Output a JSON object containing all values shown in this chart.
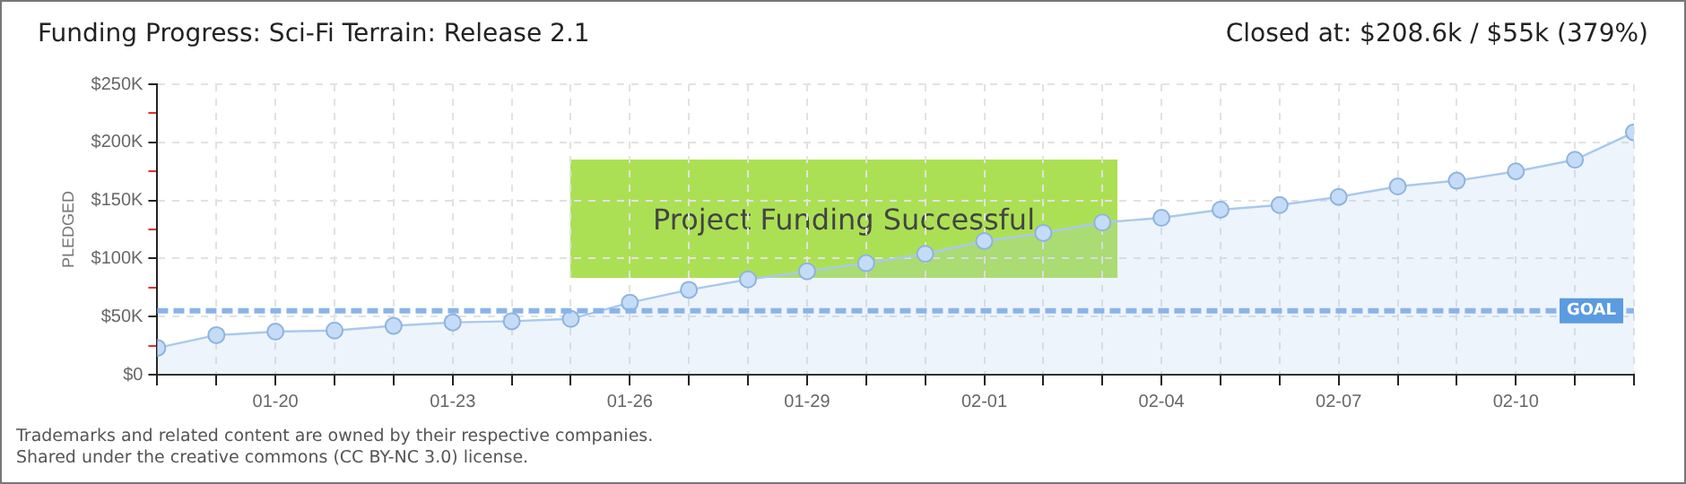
{
  "chart_data": {
    "type": "area",
    "title": "Funding Progress: Sci-Fi Terrain: Release 2.1",
    "subtitle": "Closed at: $208.6k / $55k (379%)",
    "ylabel": "PLEDGED",
    "annotations": [
      "Project Funding Successful",
      "Trademarks and related content are owned by their respective companies.",
      "Shared under the creative commons (CC BY-NC 3.0) license."
    ],
    "x": [
      "--01-18",
      "--01-19",
      "--01-20",
      "--01-21",
      "--01-22",
      "--01-23",
      "--01-24",
      "--01-25",
      "--01-26",
      "--01-27",
      "--01-28",
      "--01-29",
      "--01-30",
      "--01-31",
      "--02-01",
      "--02-02",
      "--02-03",
      "--02-04",
      "--02-05",
      "--02-06",
      "--02-07",
      "--02-08",
      "--02-09",
      "--02-10",
      "--02-11",
      "--02-12"
    ],
    "series": [
      {
        "color": "#a9c9ee",
        "values": [
          23,
          34,
          37,
          38,
          42,
          45,
          46,
          48,
          62,
          73,
          82,
          89,
          96,
          104,
          115,
          122,
          131,
          135,
          142,
          146,
          153,
          162,
          167,
          175,
          185,
          208.6
        ]
      }
    ],
    "xlim": [
      "--01-18",
      "--02-12"
    ],
    "xticks": [
      {
        "value": "--01-18",
        "label": null
      },
      {
        "value": "--01-19",
        "label": null
      },
      {
        "value": "--01-20",
        "label": "01-20"
      },
      {
        "value": "--01-21",
        "label": null
      },
      {
        "value": "--01-22",
        "label": null
      },
      {
        "value": "--01-23",
        "label": "01-23"
      },
      {
        "value": "--01-24",
        "label": null
      },
      {
        "value": "--01-25",
        "label": null
      },
      {
        "value": "--01-26",
        "label": "01-26"
      },
      {
        "value": "--01-27",
        "label": null
      },
      {
        "value": "--01-28",
        "label": null
      },
      {
        "value": "--01-29",
        "label": "01-29"
      },
      {
        "value": "--01-30",
        "label": null
      },
      {
        "value": "--01-31",
        "label": null
      },
      {
        "value": "--02-01",
        "label": "02-01"
      },
      {
        "value": "--02-02",
        "label": null
      },
      {
        "value": "--02-03",
        "label": null
      },
      {
        "value": "--02-04",
        "label": "02-04"
      },
      {
        "value": "--02-05",
        "label": null
      },
      {
        "value": "--02-06",
        "label": null
      },
      {
        "value": "--02-07",
        "label": "02-07"
      },
      {
        "value": "--02-08",
        "label": null
      },
      {
        "value": "--02-09",
        "label": null
      },
      {
        "value": "--02-10",
        "label": "02-10"
      },
      {
        "value": "--02-11",
        "label": null
      },
      {
        "value": "--02-12",
        "label": null
      }
    ],
    "ylim": [
      0,
      250
    ],
    "yticks": [
      {
        "value": 0,
        "label": "$0"
      },
      {
        "value": 25,
        "label": null
      },
      {
        "value": 50,
        "label": "$50K"
      },
      {
        "value": 75,
        "label": null
      },
      {
        "value": 100,
        "label": "$100K"
      },
      {
        "value": 125,
        "label": null
      },
      {
        "value": 150,
        "label": "$150K"
      },
      {
        "value": 175,
        "label": null
      },
      {
        "value": 200,
        "label": "$200K"
      },
      {
        "value": 225,
        "label": null
      },
      {
        "value": 250,
        "label": "$250K"
      }
    ],
    "ref_lines": [
      {
        "axis": "y",
        "value": 55,
        "label": "GOAL",
        "color": "#8ab4e8",
        "line_style": "dashed"
      }
    ],
    "grid": true,
    "legend": false,
    "marker": "circle",
    "line_style": "solid"
  }
}
